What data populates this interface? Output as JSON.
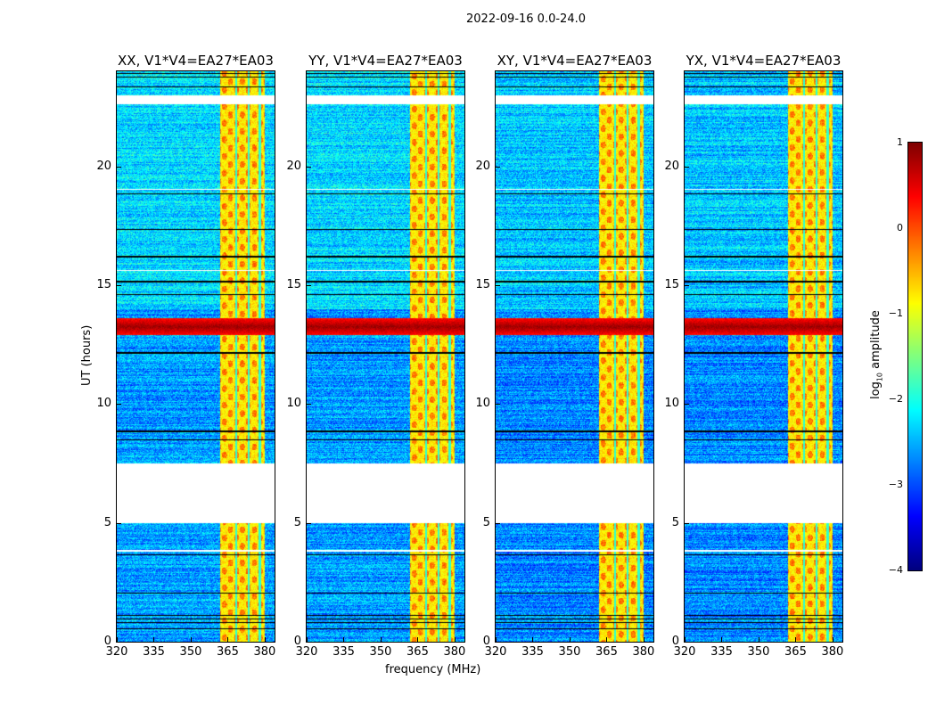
{
  "chart_data": {
    "type": "heatmap",
    "title": "2022-09-16 0.0-24.0",
    "panels": [
      {
        "title": "XX, V1*V4=EA27*EA03"
      },
      {
        "title": "YY, V1*V4=EA27*EA03"
      },
      {
        "title": "XY, V1*V4=EA27*EA03"
      },
      {
        "title": "YX, V1*V4=EA27*EA03"
      }
    ],
    "xlabel": "frequency (MHz)",
    "ylabel": "UT (hours)",
    "xlim": [
      320,
      384
    ],
    "ylim": [
      0,
      24
    ],
    "xticks": [
      "320",
      "335",
      "350",
      "365",
      "380"
    ],
    "xtick_values": [
      320,
      335,
      350,
      365,
      380
    ],
    "yticks": [
      "0",
      "5",
      "10",
      "15",
      "20"
    ],
    "ytick_values": [
      0,
      5,
      10,
      15,
      20
    ],
    "colorbar": {
      "label_prefix": "log",
      "label_sub": "10",
      "label_suffix": " amplitude",
      "colormap": "jet",
      "range": [
        -4,
        1
      ],
      "ticks": [
        "1",
        "0",
        "−1",
        "−2",
        "−3",
        "−4"
      ],
      "tick_values": [
        1,
        0,
        -1,
        -2,
        -3,
        -4
      ]
    },
    "features": {
      "background_log_amp": -2.6,
      "late_background_log_amp": -2.3,
      "rfi_band_mhz": [
        362,
        380
      ],
      "rfi_band_log_amp": -0.8,
      "rfi_gap_channels_mhz": [
        368.5,
        373.5,
        378
      ],
      "strong_rfi_hours": [
        12.9,
        13.6
      ],
      "strong_rfi_log_amp": 0.85,
      "flagged_hours": [
        [
          5.0,
          7.5
        ],
        [
          22.6,
          23.0
        ],
        [
          3.8,
          3.85
        ],
        [
          19.0,
          19.05
        ],
        [
          15.6,
          15.65
        ]
      ],
      "dropout_hours": [
        0.55,
        0.8,
        0.95,
        1.1,
        2.05,
        3.65,
        8.5,
        8.85,
        12.15,
        14.6,
        15.15,
        16.2,
        17.35,
        18.85,
        23.35,
        23.75,
        23.9
      ]
    }
  }
}
